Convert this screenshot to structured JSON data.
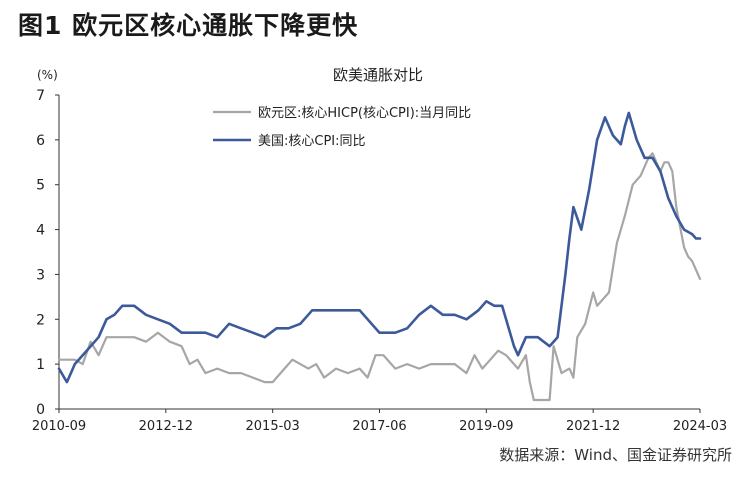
{
  "figure": {
    "title": "图1  欧元区核心通胀下降更快",
    "source": "数据来源：Wind、国金证券研究所"
  },
  "colors": {
    "euro": "#a6a6a6",
    "us": "#3c5a9a",
    "axis": "#333333"
  },
  "chart_data": {
    "type": "line",
    "title": "欧美通胀对比",
    "ylabel": "(%)",
    "xlabel": "",
    "ylim": [
      0,
      7
    ],
    "yticks": [
      0,
      1,
      2,
      3,
      4,
      5,
      6,
      7
    ],
    "xlim": [
      2010.667,
      2024.167
    ],
    "xticks": [
      {
        "label": "2010-09",
        "value": 2010.667
      },
      {
        "label": "2012-12",
        "value": 2012.917
      },
      {
        "label": "2015-03",
        "value": 2015.167
      },
      {
        "label": "2017-06",
        "value": 2017.417
      },
      {
        "label": "2019-09",
        "value": 2019.667
      },
      {
        "label": "2021-12",
        "value": 2021.917
      },
      {
        "label": "2024-03",
        "value": 2024.167
      }
    ],
    "grid": false,
    "legend": "top-center",
    "series": [
      {
        "name": "欧元区:核心HICP(核心CPI):当月同比",
        "color": "#a6a6a6",
        "points": [
          [
            2010.667,
            1.1
          ],
          [
            2010.833,
            1.1
          ],
          [
            2011.0,
            1.1
          ],
          [
            2011.167,
            1.0
          ],
          [
            2011.333,
            1.5
          ],
          [
            2011.5,
            1.2
          ],
          [
            2011.667,
            1.6
          ],
          [
            2011.833,
            1.6
          ],
          [
            2012.0,
            1.6
          ],
          [
            2012.25,
            1.6
          ],
          [
            2012.5,
            1.5
          ],
          [
            2012.75,
            1.7
          ],
          [
            2013.0,
            1.5
          ],
          [
            2013.25,
            1.4
          ],
          [
            2013.417,
            1.0
          ],
          [
            2013.583,
            1.1
          ],
          [
            2013.75,
            0.8
          ],
          [
            2014.0,
            0.9
          ],
          [
            2014.25,
            0.8
          ],
          [
            2014.5,
            0.8
          ],
          [
            2014.75,
            0.7
          ],
          [
            2015.0,
            0.6
          ],
          [
            2015.167,
            0.6
          ],
          [
            2015.417,
            0.9
          ],
          [
            2015.583,
            1.1
          ],
          [
            2015.75,
            1.0
          ],
          [
            2015.917,
            0.9
          ],
          [
            2016.083,
            1.0
          ],
          [
            2016.25,
            0.7
          ],
          [
            2016.5,
            0.9
          ],
          [
            2016.75,
            0.8
          ],
          [
            2017.0,
            0.9
          ],
          [
            2017.167,
            0.7
          ],
          [
            2017.333,
            1.2
          ],
          [
            2017.5,
            1.2
          ],
          [
            2017.75,
            0.9
          ],
          [
            2018.0,
            1.0
          ],
          [
            2018.25,
            0.9
          ],
          [
            2018.5,
            1.0
          ],
          [
            2018.75,
            1.0
          ],
          [
            2019.0,
            1.0
          ],
          [
            2019.25,
            0.8
          ],
          [
            2019.417,
            1.2
          ],
          [
            2019.583,
            0.9
          ],
          [
            2019.75,
            1.1
          ],
          [
            2019.917,
            1.3
          ],
          [
            2020.083,
            1.2
          ],
          [
            2020.333,
            0.9
          ],
          [
            2020.5,
            1.2
          ],
          [
            2020.583,
            0.6
          ],
          [
            2020.667,
            0.2
          ],
          [
            2020.833,
            0.2
          ],
          [
            2021.0,
            0.2
          ],
          [
            2021.083,
            1.4
          ],
          [
            2021.25,
            0.8
          ],
          [
            2021.417,
            0.9
          ],
          [
            2021.5,
            0.7
          ],
          [
            2021.583,
            1.6
          ],
          [
            2021.75,
            1.9
          ],
          [
            2021.917,
            2.6
          ],
          [
            2022.0,
            2.3
          ],
          [
            2022.25,
            2.6
          ],
          [
            2022.417,
            3.7
          ],
          [
            2022.583,
            4.3
          ],
          [
            2022.75,
            5.0
          ],
          [
            2022.917,
            5.2
          ],
          [
            2023.083,
            5.6
          ],
          [
            2023.167,
            5.7
          ],
          [
            2023.333,
            5.3
          ],
          [
            2023.417,
            5.5
          ],
          [
            2023.5,
            5.5
          ],
          [
            2023.583,
            5.3
          ],
          [
            2023.667,
            4.5
          ],
          [
            2023.833,
            3.6
          ],
          [
            2023.917,
            3.4
          ],
          [
            2024.0,
            3.3
          ],
          [
            2024.167,
            2.9
          ]
        ]
      },
      {
        "name": "美国:核心CPI:同比",
        "color": "#3c5a9a",
        "points": [
          [
            2010.667,
            0.9
          ],
          [
            2010.833,
            0.6
          ],
          [
            2010.917,
            0.8
          ],
          [
            2011.0,
            1.0
          ],
          [
            2011.25,
            1.3
          ],
          [
            2011.5,
            1.6
          ],
          [
            2011.667,
            2.0
          ],
          [
            2011.833,
            2.1
          ],
          [
            2012.0,
            2.3
          ],
          [
            2012.25,
            2.3
          ],
          [
            2012.5,
            2.1
          ],
          [
            2012.75,
            2.0
          ],
          [
            2013.0,
            1.9
          ],
          [
            2013.25,
            1.7
          ],
          [
            2013.5,
            1.7
          ],
          [
            2013.75,
            1.7
          ],
          [
            2014.0,
            1.6
          ],
          [
            2014.25,
            1.9
          ],
          [
            2014.5,
            1.8
          ],
          [
            2014.75,
            1.7
          ],
          [
            2015.0,
            1.6
          ],
          [
            2015.25,
            1.8
          ],
          [
            2015.5,
            1.8
          ],
          [
            2015.75,
            1.9
          ],
          [
            2016.0,
            2.2
          ],
          [
            2016.25,
            2.2
          ],
          [
            2016.5,
            2.2
          ],
          [
            2016.75,
            2.2
          ],
          [
            2017.0,
            2.2
          ],
          [
            2017.25,
            1.9
          ],
          [
            2017.417,
            1.7
          ],
          [
            2017.75,
            1.7
          ],
          [
            2018.0,
            1.8
          ],
          [
            2018.25,
            2.1
          ],
          [
            2018.5,
            2.3
          ],
          [
            2018.75,
            2.1
          ],
          [
            2019.0,
            2.1
          ],
          [
            2019.25,
            2.0
          ],
          [
            2019.5,
            2.2
          ],
          [
            2019.667,
            2.4
          ],
          [
            2019.833,
            2.3
          ],
          [
            2020.0,
            2.3
          ],
          [
            2020.25,
            1.4
          ],
          [
            2020.333,
            1.2
          ],
          [
            2020.5,
            1.6
          ],
          [
            2020.75,
            1.6
          ],
          [
            2021.0,
            1.4
          ],
          [
            2021.167,
            1.6
          ],
          [
            2021.333,
            3.0
          ],
          [
            2021.417,
            3.8
          ],
          [
            2021.5,
            4.5
          ],
          [
            2021.667,
            4.0
          ],
          [
            2021.833,
            4.9
          ],
          [
            2022.0,
            6.0
          ],
          [
            2022.167,
            6.5
          ],
          [
            2022.333,
            6.1
          ],
          [
            2022.5,
            5.9
          ],
          [
            2022.583,
            6.3
          ],
          [
            2022.667,
            6.6
          ],
          [
            2022.833,
            6.0
          ],
          [
            2023.0,
            5.6
          ],
          [
            2023.167,
            5.6
          ],
          [
            2023.333,
            5.3
          ],
          [
            2023.5,
            4.7
          ],
          [
            2023.667,
            4.3
          ],
          [
            2023.833,
            4.0
          ],
          [
            2024.0,
            3.9
          ],
          [
            2024.083,
            3.8
          ],
          [
            2024.167,
            3.8
          ]
        ]
      }
    ]
  }
}
